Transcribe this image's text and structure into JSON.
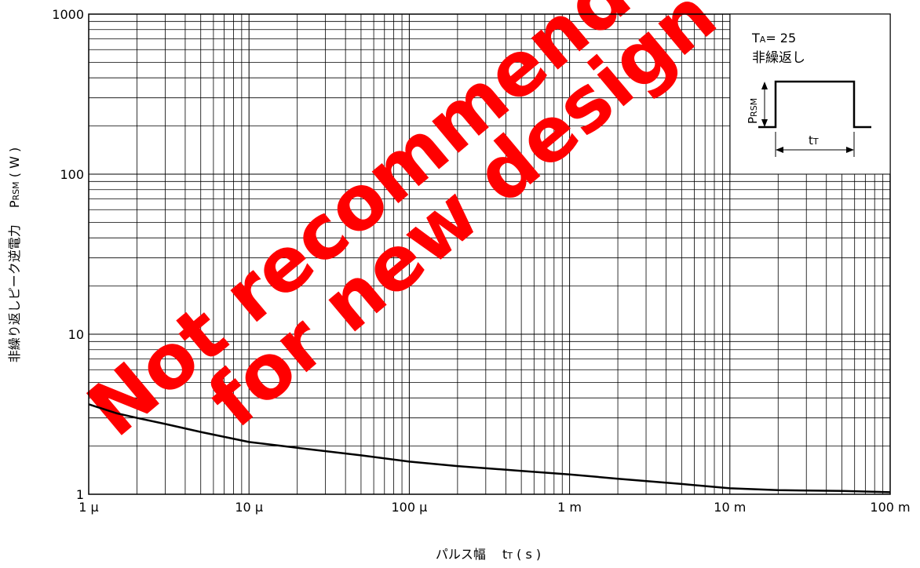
{
  "chart_data": {
    "type": "line",
    "xscale": "log",
    "yscale": "log",
    "xlim": [
      1e-06,
      0.1
    ],
    "ylim": [
      1,
      1000
    ],
    "grid": true,
    "xlabel_parts": [
      "パルス幅",
      "t",
      "T",
      "( s )"
    ],
    "ylabel_parts": [
      "非繰り返しピーク逆電力",
      "P",
      "RSM",
      "( W )"
    ],
    "x_ticks": [
      {
        "value": 1e-06,
        "label": "1 μ"
      },
      {
        "value": 1e-05,
        "label": "10 μ"
      },
      {
        "value": 0.0001,
        "label": "100 μ"
      },
      {
        "value": 0.001,
        "label": "1 m"
      },
      {
        "value": 0.01,
        "label": "10 m"
      },
      {
        "value": 0.1,
        "label": "100 m"
      }
    ],
    "y_ticks": [
      {
        "value": 1,
        "label": "1"
      },
      {
        "value": 10,
        "label": "10"
      },
      {
        "value": 100,
        "label": "100"
      },
      {
        "value": 1000,
        "label": "1000"
      }
    ],
    "series": [
      {
        "x": [
          1e-06,
          1.5e-06,
          2e-06,
          3e-06,
          5e-06,
          1e-05,
          2e-05,
          5e-05,
          0.0001,
          0.0002,
          0.0005,
          0.001,
          0.002,
          0.005,
          0.01,
          0.02,
          0.05,
          0.1
        ],
        "y": [
          3.65,
          3.2,
          3.0,
          2.75,
          2.45,
          2.12,
          1.95,
          1.75,
          1.6,
          1.5,
          1.4,
          1.33,
          1.25,
          1.16,
          1.09,
          1.06,
          1.05,
          1.03
        ]
      }
    ],
    "inset": {
      "condition_parts": [
        "T",
        "A",
        "= 25"
      ],
      "subtitle": "非繰返し",
      "pulse_height_parts": [
        "P",
        "RSM"
      ],
      "pulse_width_parts": [
        "t",
        "T"
      ]
    },
    "watermark_lines": [
      "Not recommended",
      "for new design"
    ],
    "colors": {
      "line": "#000000",
      "grid": "#000000",
      "watermark": "#ff0000"
    }
  }
}
